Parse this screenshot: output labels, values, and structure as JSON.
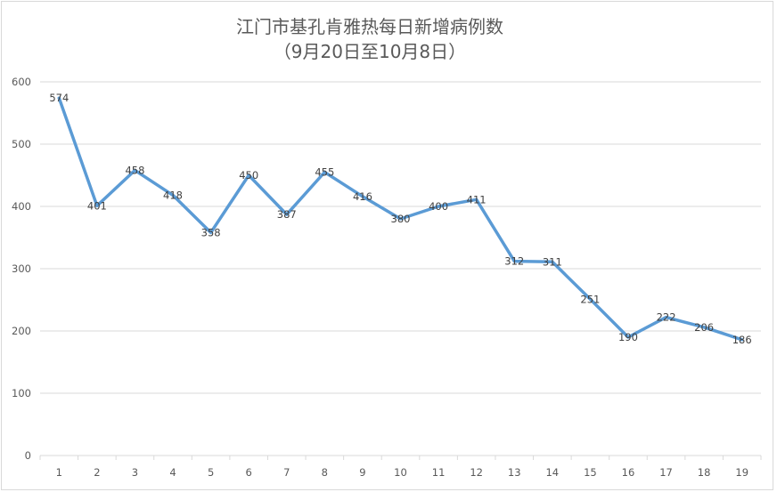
{
  "chart_data": {
    "type": "line",
    "title": "江门市基孔肯雅热每日新增病例数",
    "subtitle": "（9月20日至10月8日）",
    "xlabel": "",
    "ylabel": "",
    "categories": [
      "1",
      "2",
      "3",
      "4",
      "5",
      "6",
      "7",
      "8",
      "9",
      "10",
      "11",
      "12",
      "13",
      "14",
      "15",
      "16",
      "17",
      "18",
      "19"
    ],
    "series": [
      {
        "name": "每日新增病例数",
        "values": [
          574,
          401,
          458,
          418,
          358,
          450,
          387,
          455,
          416,
          380,
          400,
          411,
          312,
          311,
          251,
          190,
          222,
          206,
          186
        ],
        "color": "#5B9BD5",
        "data_labels": true
      }
    ],
    "ylim": [
      0,
      600
    ],
    "yticks": [
      0,
      100,
      200,
      300,
      400,
      500,
      600
    ],
    "grid": true,
    "legend": "none"
  },
  "colors": {
    "line": "#5B9BD5",
    "grid": "#d9d9d9",
    "text": "#595959"
  }
}
